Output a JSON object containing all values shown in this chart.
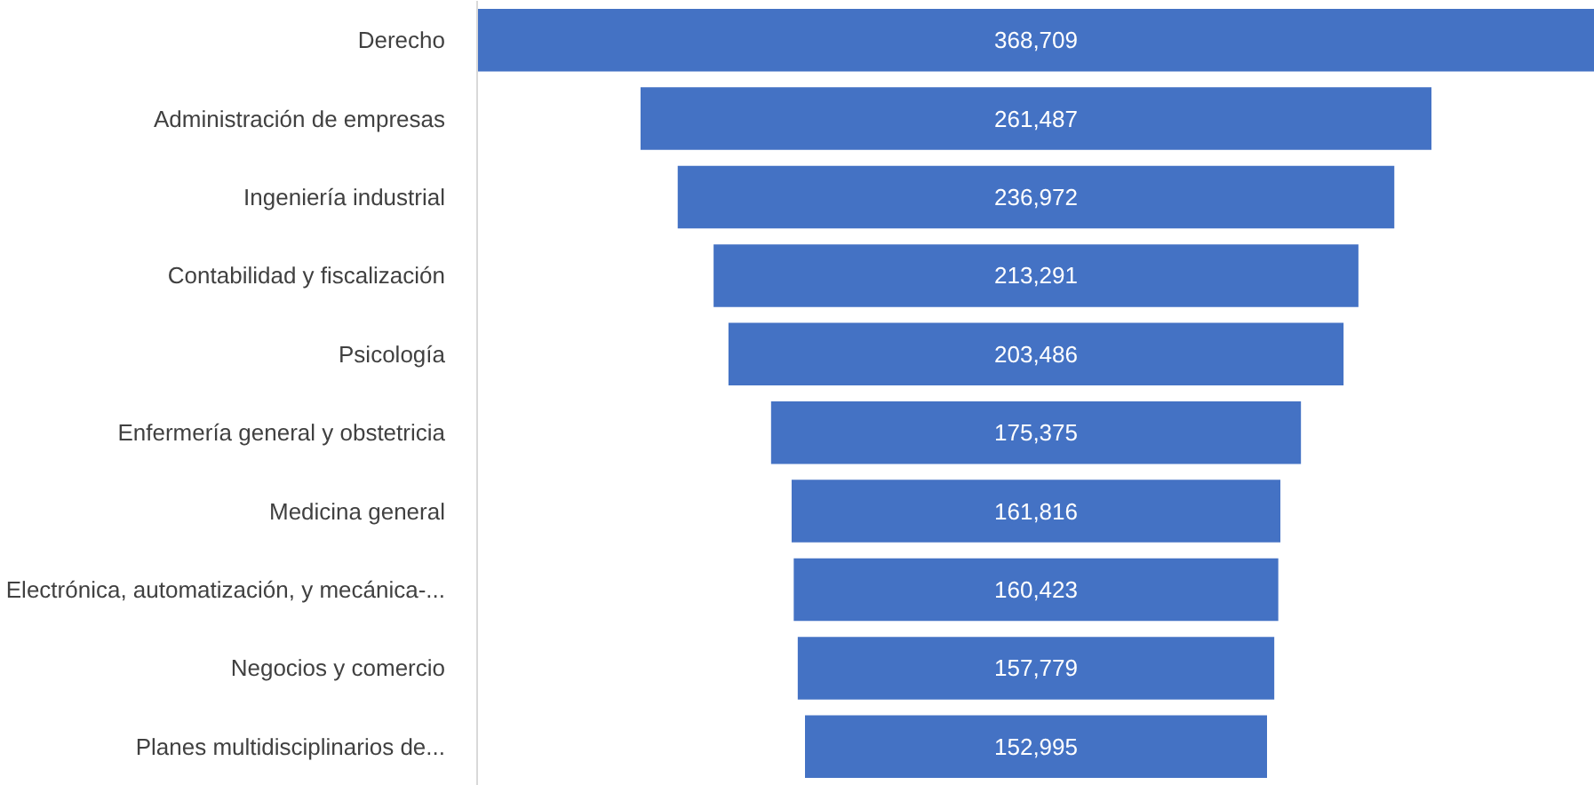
{
  "chart_data": {
    "type": "other",
    "categories": [
      "Derecho",
      "Administración de empresas",
      "Ingeniería industrial",
      "Contabilidad y fiscalización",
      "Psicología",
      "Enfermería general y obstetricia",
      "Medicina general",
      "Electrónica, automatización, y mecánica-...",
      "Negocios y comercio",
      "Planes multidisciplinarios de..."
    ],
    "values": [
      368709,
      261487,
      236972,
      213291,
      203486,
      175375,
      161816,
      160423,
      157779,
      152995
    ],
    "value_labels": [
      "368,709",
      "261,487",
      "236,972",
      "213,291",
      "203,486",
      "175,375",
      "161,816",
      "160,423",
      "157,779",
      "152,995"
    ],
    "color": "#4472c4"
  }
}
